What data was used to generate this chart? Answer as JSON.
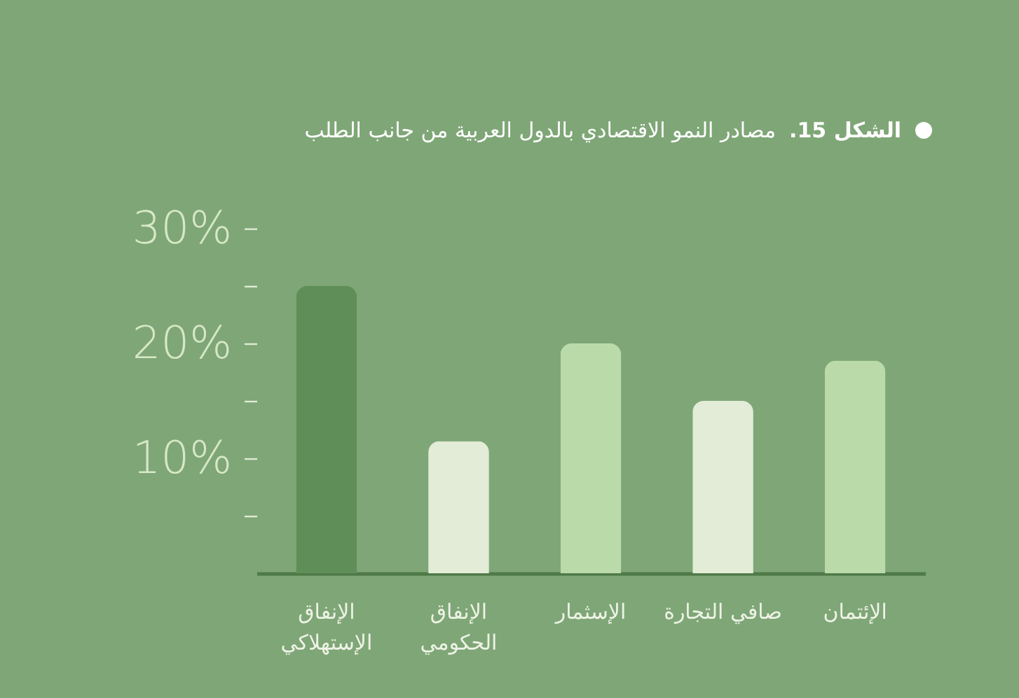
{
  "chart_data": {
    "type": "bar",
    "title": "الشكل 15. مصادر النمو الاقتصادي بالدول العربية من جانب الطلب",
    "categories": [
      "الإنفاق\nالإستهلاكي",
      "الإنفاق\nالحكومي",
      "الإسثمار",
      "صافي التجارة",
      "الإئتمان"
    ],
    "values": [
      25,
      11.5,
      20,
      15,
      18.5
    ],
    "colors": [
      "#5f8e58",
      "#e2ecd6",
      "#badba9",
      "#e2ecd6",
      "#badba9"
    ],
    "ylim": [
      0,
      30
    ],
    "yticks": [
      {
        "value": 5,
        "label": null
      },
      {
        "value": 10,
        "label": "10%"
      },
      {
        "value": 15,
        "label": null
      },
      {
        "value": 20,
        "label": "20%"
      },
      {
        "value": 25,
        "label": null
      },
      {
        "value": 30,
        "label": "30%"
      }
    ],
    "grid": false
  }
}
